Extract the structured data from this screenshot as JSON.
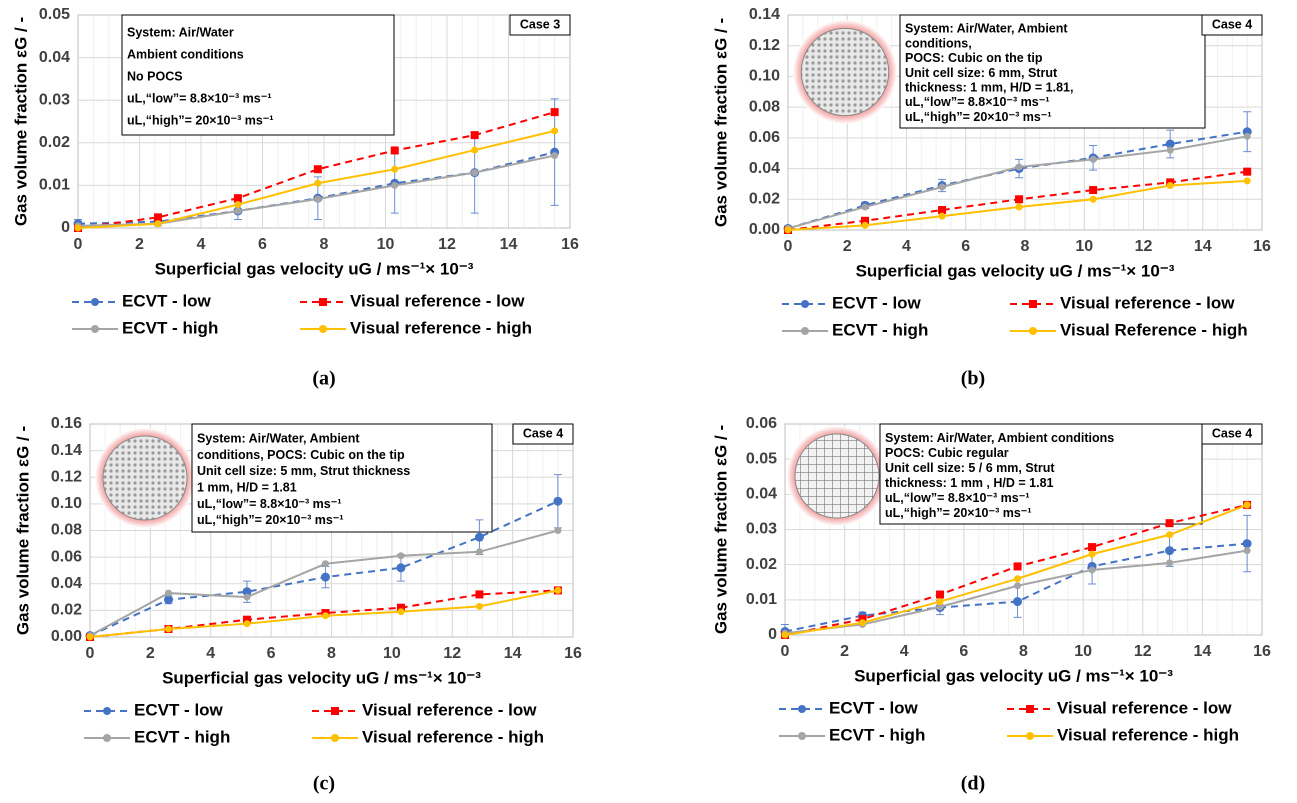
{
  "chart_data": [
    {
      "type": "line",
      "panel_label": "(a)",
      "case_label": "Case 3",
      "annotation": [
        "System: Air/Water",
        "Ambient conditions",
        "No POCS",
        "uL,“low”= 8.8×10⁻³ ms⁻¹",
        "uL,“high”= 20×10⁻³ ms⁻¹"
      ],
      "x_label": "Superficial gas velocity uG / ms⁻¹× 10⁻³",
      "y_label": "Gas volume fraction εG / -",
      "x": [
        0,
        2.6,
        5.2,
        7.8,
        10.3,
        12.9,
        15.5
      ],
      "xlim": [
        0,
        16
      ],
      "xticks": [
        0,
        2,
        4,
        6,
        8,
        10,
        12,
        14,
        16
      ],
      "ylim": [
        0,
        0.05
      ],
      "yticks": [
        0,
        0.01,
        0.02,
        0.03,
        0.04,
        0.05
      ],
      "grid": true,
      "series": [
        {
          "name": "ECVT - low",
          "color": "#4472c4",
          "dashed": true,
          "marker": "circle",
          "values": [
            0.001,
            0.0015,
            0.004,
            0.007,
            0.0105,
            0.013,
            0.0178
          ],
          "errors": [
            0.001,
            0.001,
            0.002,
            0.005,
            0.007,
            0.0095,
            0.0125
          ]
        },
        {
          "name": "Visual reference - low",
          "color": "#ff0000",
          "dashed": true,
          "marker": "square",
          "values": [
            0,
            0.0025,
            0.007,
            0.0138,
            0.0182,
            0.0218,
            0.0272
          ]
        },
        {
          "name": "ECVT - high",
          "color": "#a5a5a5",
          "dashed": false,
          "marker": "circle",
          "values": [
            0.0005,
            0.001,
            0.004,
            0.0068,
            0.01,
            0.013,
            0.017
          ]
        },
        {
          "name": "Visual reference - high",
          "color": "#ffc000",
          "dashed": false,
          "marker": "circle",
          "values": [
            0,
            0.001,
            0.0055,
            0.0105,
            0.0138,
            0.0183,
            0.0228
          ]
        }
      ]
    },
    {
      "type": "line",
      "panel_label": "(b)",
      "case_label": "Case 4",
      "annotation": [
        "System: Air/Water, Ambient",
        "conditions,",
        "POCS: Cubic on the tip",
        "Unit cell size: 6 mm, Strut",
        "thickness: 1 mm, H/D = 1.81,",
        "uL,“low”= 8.8×10⁻³ ms⁻¹",
        "uL,“high”= 20×10⁻³ ms⁻¹"
      ],
      "x_label": "Superficial gas velocity uG / ms⁻¹× 10⁻³",
      "y_label": "Gas volume fraction εG / -",
      "x": [
        0,
        2.6,
        5.2,
        7.8,
        10.3,
        12.9,
        15.5
      ],
      "xlim": [
        0,
        16
      ],
      "xticks": [
        0,
        2,
        4,
        6,
        8,
        10,
        12,
        14,
        16
      ],
      "ylim": [
        0,
        0.14
      ],
      "yticks": [
        {
          "value": 0,
          "label": "0.00"
        },
        0.02,
        0.04,
        0.06,
        0.08,
        {
          "value": 0.1,
          "label": "0.10"
        },
        0.12,
        0.14
      ],
      "grid": true,
      "series": [
        {
          "name": "ECVT - low",
          "color": "#4472c4",
          "dashed": true,
          "marker": "circle",
          "values": [
            0.001,
            0.016,
            0.029,
            0.04,
            0.047,
            0.056,
            0.064
          ],
          "errors": [
            0.001,
            0.002,
            0.004,
            0.006,
            0.008,
            0.009,
            0.013
          ]
        },
        {
          "name": "Visual reference - low",
          "color": "#ff0000",
          "dashed": true,
          "marker": "square",
          "values": [
            0,
            0.006,
            0.013,
            0.02,
            0.026,
            0.031,
            0.038
          ]
        },
        {
          "name": "ECVT - high",
          "color": "#a5a5a5",
          "dashed": false,
          "marker": "circle",
          "values": [
            0.001,
            0.015,
            0.028,
            0.041,
            0.046,
            0.052,
            0.061
          ]
        },
        {
          "name": "Visual Reference - high",
          "color": "#ffc000",
          "dashed": false,
          "marker": "circle",
          "values": [
            0,
            0.003,
            0.009,
            0.015,
            0.02,
            0.029,
            0.032
          ]
        }
      ]
    },
    {
      "type": "line",
      "panel_label": "(c)",
      "case_label": "Case 4",
      "annotation": [
        "System: Air/Water, Ambient",
        "conditions, POCS: Cubic on the tip",
        "Unit cell size: 5 mm, Strut thickness",
        "1 mm, H/D = 1.81",
        "uL,“low”= 8.8×10⁻³ ms⁻¹",
        "uL,“high”= 20×10⁻³ ms⁻¹"
      ],
      "x_label": "Superficial gas velocity uG / ms⁻¹× 10⁻³",
      "y_label": "Gas volume fraction εG / -",
      "x": [
        0,
        2.6,
        5.2,
        7.8,
        10.3,
        12.9,
        15.5
      ],
      "xlim": [
        0,
        16
      ],
      "xticks": [
        0,
        2,
        4,
        6,
        8,
        10,
        12,
        14,
        16
      ],
      "ylim": [
        0,
        0.16
      ],
      "yticks": [
        {
          "value": 0,
          "label": "0.00"
        },
        0.02,
        0.04,
        0.06,
        0.08,
        {
          "value": 0.1,
          "label": "0.10"
        },
        0.12,
        0.14,
        0.16
      ],
      "grid": true,
      "series": [
        {
          "name": "ECVT - low",
          "color": "#4472c4",
          "dashed": true,
          "marker": "circle",
          "values": [
            0.001,
            0.028,
            0.034,
            0.045,
            0.052,
            0.075,
            0.102
          ],
          "errors": [
            0.001,
            0.003,
            0.008,
            0.008,
            0.01,
            0.013,
            0.02
          ]
        },
        {
          "name": "Visual reference - low",
          "color": "#ff0000",
          "dashed": true,
          "marker": "square",
          "values": [
            0,
            0.006,
            0.013,
            0.018,
            0.022,
            0.032,
            0.035
          ]
        },
        {
          "name": "ECVT - high",
          "color": "#a5a5a5",
          "dashed": false,
          "marker": "circle",
          "values": [
            0.001,
            0.033,
            0.03,
            0.055,
            0.061,
            0.064,
            0.08
          ]
        },
        {
          "name": "Visual reference - high",
          "color": "#ffc000",
          "dashed": false,
          "marker": "circle",
          "values": [
            0,
            0.006,
            0.01,
            0.016,
            0.019,
            0.023,
            0.035
          ]
        }
      ]
    },
    {
      "type": "line",
      "panel_label": "(d)",
      "case_label": "Case 4",
      "annotation": [
        "System: Air/Water, Ambient conditions",
        "POCS: Cubic regular",
        "Unit cell size: 5 / 6 mm, Strut",
        "thickness: 1 mm , H/D = 1.81",
        "uL,“low”= 8.8×10⁻³ ms⁻¹",
        "uL,“high”= 20×10⁻³ ms⁻¹"
      ],
      "x_label": "Superficial gas velocity uG / ms⁻¹× 10⁻³",
      "y_label": "Gas volume fraction εG / -",
      "x": [
        0,
        2.6,
        5.2,
        7.8,
        10.3,
        12.9,
        15.5
      ],
      "xlim": [
        0,
        16
      ],
      "xticks": [
        0,
        2,
        4,
        6,
        8,
        10,
        12,
        14,
        16
      ],
      "ylim": [
        0,
        0.06
      ],
      "yticks": [
        0,
        0.01,
        0.02,
        0.03,
        0.04,
        0.05,
        0.06
      ],
      "grid": true,
      "series": [
        {
          "name": "ECVT - low",
          "color": "#4472c4",
          "dashed": true,
          "marker": "circle",
          "values": [
            0.001,
            0.0055,
            0.0078,
            0.0095,
            0.0195,
            0.024,
            0.026
          ],
          "errors": [
            0.002,
            0.001,
            0.002,
            0.0045,
            0.005,
            0.0045,
            0.008
          ]
        },
        {
          "name": "Visual reference - low",
          "color": "#ff0000",
          "dashed": true,
          "marker": "square",
          "values": [
            0,
            0.0045,
            0.0115,
            0.0195,
            0.025,
            0.0318,
            0.037
          ]
        },
        {
          "name": "ECVT - high",
          "color": "#a5a5a5",
          "dashed": false,
          "marker": "circle",
          "values": [
            0.0005,
            0.003,
            0.008,
            0.014,
            0.0185,
            0.0205,
            0.024
          ]
        },
        {
          "name": "Visual reference - high",
          "color": "#ffc000",
          "dashed": false,
          "marker": "circle",
          "values": [
            0,
            0.0035,
            0.0095,
            0.016,
            0.023,
            0.0285,
            0.037
          ]
        }
      ]
    }
  ]
}
